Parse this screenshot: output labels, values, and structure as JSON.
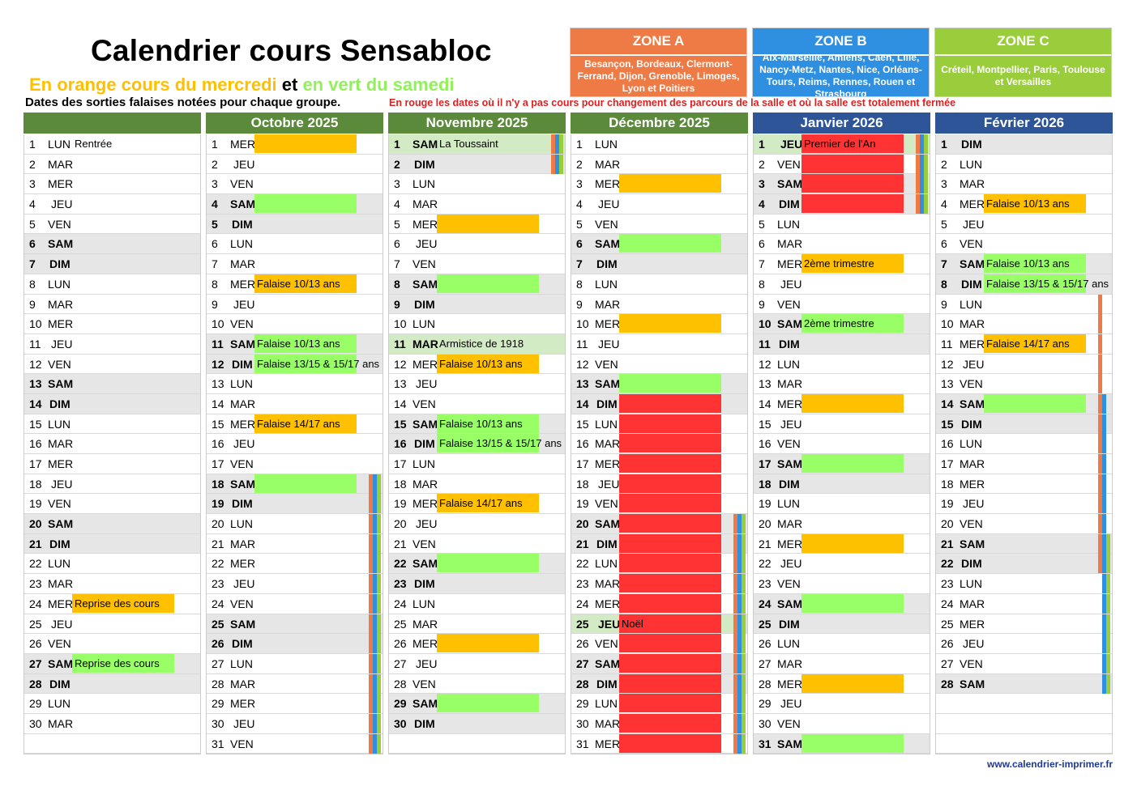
{
  "title": "Calendrier cours Sensabloc",
  "subtitle": {
    "part1": "En orange cours du mercredi",
    "part2": " et ",
    "part3": "en vert du samedi"
  },
  "note_sorties": "Dates des sorties falaises notées pour chaque groupe.",
  "note_rouge": "En rouge les dates où il n'y a pas cours pour changement des parcours de la salle et où la salle est totalement fermée",
  "footer": "www.calendrier-imprimer.fr",
  "colors": {
    "orange": "#FFC000",
    "green": "#99FF66",
    "red": "#FF3333",
    "zoneA": "#EE7A45",
    "zoneB": "#2F8FE0",
    "zoneC": "#9ACD3C",
    "headerGreen": "#5B8A3A",
    "headerBlue": "#2E5597"
  },
  "zones": [
    {
      "name": "ZONE A",
      "cities": "Besançon, Bordeaux, Clermont-Ferrand, Dijon, Grenoble, Limoges, Lyon et Poitiers"
    },
    {
      "name": "ZONE B",
      "cities": "Aix-Marseille, Amiens, Caen, Lille, Nancy-Metz, Nantes, Nice, Orléans-Tours, Reims, Rennes, Rouen et Strasbourg"
    },
    {
      "name": "ZONE C",
      "cities": "Créteil, Montpellier, Paris, Toulouse et Versailles"
    }
  ],
  "months": [
    {
      "name": "",
      "header": "green",
      "days": [
        [
          "1",
          "LUN",
          "Rentrée",
          "txt"
        ],
        [
          "2",
          "MAR"
        ],
        [
          "3",
          "MER"
        ],
        [
          "4",
          "JEU"
        ],
        [
          "5",
          "VEN"
        ],
        [
          "6",
          "SAM",
          "",
          "",
          "we"
        ],
        [
          "7",
          "DIM",
          "",
          "",
          "we"
        ],
        [
          "8",
          "LUN"
        ],
        [
          "9",
          "MAR"
        ],
        [
          "10",
          "MER"
        ],
        [
          "11",
          "JEU"
        ],
        [
          "12",
          "VEN"
        ],
        [
          "13",
          "SAM",
          "",
          "",
          "we"
        ],
        [
          "14",
          "DIM",
          "",
          "",
          "we"
        ],
        [
          "15",
          "LUN"
        ],
        [
          "16",
          "MAR"
        ],
        [
          "17",
          "MER"
        ],
        [
          "18",
          "JEU"
        ],
        [
          "19",
          "VEN"
        ],
        [
          "20",
          "SAM",
          "",
          "",
          "we"
        ],
        [
          "21",
          "DIM",
          "",
          "",
          "we"
        ],
        [
          "22",
          "LUN"
        ],
        [
          "23",
          "MAR"
        ],
        [
          "24",
          "MER",
          "Reprise des cours",
          "orange"
        ],
        [
          "25",
          "JEU"
        ],
        [
          "26",
          "VEN"
        ],
        [
          "27",
          "SAM",
          "Reprise des cours",
          "green",
          "we"
        ],
        [
          "28",
          "DIM",
          "",
          "",
          "we"
        ],
        [
          "29",
          "LUN"
        ],
        [
          "30",
          "MAR"
        ],
        [
          "",
          "",
          ""
        ]
      ]
    },
    {
      "name": "Octobre 2025",
      "header": "green",
      "days": [
        [
          "1",
          "MER",
          "",
          "orange"
        ],
        [
          "2",
          "JEU"
        ],
        [
          "3",
          "VEN"
        ],
        [
          "4",
          "SAM",
          "",
          "green",
          "we"
        ],
        [
          "5",
          "DIM",
          "",
          "",
          "we"
        ],
        [
          "6",
          "LUN"
        ],
        [
          "7",
          "MAR"
        ],
        [
          "8",
          "MER",
          "Falaise 10/13 ans",
          "orange"
        ],
        [
          "9",
          "JEU"
        ],
        [
          "10",
          "VEN"
        ],
        [
          "11",
          "SAM",
          "Falaise 10/13 ans",
          "green",
          "we"
        ],
        [
          "12",
          "DIM",
          "Falaise 13/15 & 15/17 ans",
          "green",
          "we"
        ],
        [
          "13",
          "LUN"
        ],
        [
          "14",
          "MAR"
        ],
        [
          "15",
          "MER",
          "Falaise 14/17 ans",
          "orange"
        ],
        [
          "16",
          "JEU"
        ],
        [
          "17",
          "VEN"
        ],
        [
          "18",
          "SAM",
          "",
          "green",
          "we",
          "ABC"
        ],
        [
          "19",
          "DIM",
          "",
          "",
          "we",
          "ABC"
        ],
        [
          "20",
          "LUN",
          "",
          "",
          "",
          "ABC"
        ],
        [
          "21",
          "MAR",
          "",
          "",
          "",
          "ABC"
        ],
        [
          "22",
          "MER",
          "",
          "",
          "",
          "ABC"
        ],
        [
          "23",
          "JEU",
          "",
          "",
          "",
          "ABC"
        ],
        [
          "24",
          "VEN",
          "",
          "",
          "",
          "ABC"
        ],
        [
          "25",
          "SAM",
          "",
          "",
          "we",
          "ABC"
        ],
        [
          "26",
          "DIM",
          "",
          "",
          "we",
          "ABC"
        ],
        [
          "27",
          "LUN",
          "",
          "",
          "",
          "ABC"
        ],
        [
          "28",
          "MAR",
          "",
          "",
          "",
          "ABC"
        ],
        [
          "29",
          "MER",
          "",
          "",
          "",
          "ABC"
        ],
        [
          "30",
          "JEU",
          "",
          "",
          "",
          "ABC"
        ],
        [
          "31",
          "VEN",
          "",
          "",
          "",
          "ABC"
        ]
      ]
    },
    {
      "name": "Novembre 2025",
      "header": "green",
      "days": [
        [
          "1",
          "SAM",
          "La Toussaint",
          "txt",
          "hol",
          "ABC"
        ],
        [
          "2",
          "DIM",
          "",
          "",
          "we",
          "ABC"
        ],
        [
          "3",
          "LUN"
        ],
        [
          "4",
          "MAR"
        ],
        [
          "5",
          "MER",
          "",
          "orange"
        ],
        [
          "6",
          "JEU"
        ],
        [
          "7",
          "VEN"
        ],
        [
          "8",
          "SAM",
          "",
          "green",
          "we"
        ],
        [
          "9",
          "DIM",
          "",
          "",
          "we"
        ],
        [
          "10",
          "LUN"
        ],
        [
          "11",
          "MAR",
          "Armistice de 1918",
          "txt",
          "hol"
        ],
        [
          "12",
          "MER",
          "Falaise 10/13 ans",
          "orange"
        ],
        [
          "13",
          "JEU"
        ],
        [
          "14",
          "VEN"
        ],
        [
          "15",
          "SAM",
          "Falaise 10/13 ans",
          "green",
          "we"
        ],
        [
          "16",
          "DIM",
          "Falaise 13/15 & 15/17 ans",
          "green",
          "we"
        ],
        [
          "17",
          "LUN"
        ],
        [
          "18",
          "MAR"
        ],
        [
          "19",
          "MER",
          "Falaise 14/17 ans",
          "orange"
        ],
        [
          "20",
          "JEU"
        ],
        [
          "21",
          "VEN"
        ],
        [
          "22",
          "SAM",
          "",
          "green",
          "we"
        ],
        [
          "23",
          "DIM",
          "",
          "",
          "we"
        ],
        [
          "24",
          "LUN"
        ],
        [
          "25",
          "MAR"
        ],
        [
          "26",
          "MER",
          "",
          "orange"
        ],
        [
          "27",
          "JEU"
        ],
        [
          "28",
          "VEN"
        ],
        [
          "29",
          "SAM",
          "",
          "green",
          "we"
        ],
        [
          "30",
          "DIM",
          "",
          "",
          "we"
        ],
        [
          "",
          "",
          ""
        ]
      ]
    },
    {
      "name": "Décembre 2025",
      "header": "green",
      "days": [
        [
          "1",
          "LUN"
        ],
        [
          "2",
          "MAR"
        ],
        [
          "3",
          "MER",
          "",
          "orange"
        ],
        [
          "4",
          "JEU"
        ],
        [
          "5",
          "VEN"
        ],
        [
          "6",
          "SAM",
          "",
          "green",
          "we"
        ],
        [
          "7",
          "DIM",
          "",
          "",
          "we"
        ],
        [
          "8",
          "LUN"
        ],
        [
          "9",
          "MAR"
        ],
        [
          "10",
          "MER",
          "",
          "orange"
        ],
        [
          "11",
          "JEU"
        ],
        [
          "12",
          "VEN"
        ],
        [
          "13",
          "SAM",
          "",
          "green",
          "we"
        ],
        [
          "14",
          "DIM",
          "",
          "red",
          "we"
        ],
        [
          "15",
          "LUN",
          "",
          "red"
        ],
        [
          "16",
          "MAR",
          "",
          "red"
        ],
        [
          "17",
          "MER",
          "",
          "red"
        ],
        [
          "18",
          "JEU",
          "",
          "red"
        ],
        [
          "19",
          "VEN",
          "",
          "red"
        ],
        [
          "20",
          "SAM",
          "",
          "red",
          "we",
          "ABC"
        ],
        [
          "21",
          "DIM",
          "",
          "red",
          "we",
          "ABC"
        ],
        [
          "22",
          "LUN",
          "",
          "red",
          "",
          "ABC"
        ],
        [
          "23",
          "MAR",
          "",
          "red",
          "",
          "ABC"
        ],
        [
          "24",
          "MER",
          "",
          "red",
          "",
          "ABC"
        ],
        [
          "25",
          "JEU",
          "Noël",
          "red",
          "hol",
          "ABC"
        ],
        [
          "26",
          "VEN",
          "",
          "red",
          "",
          "ABC"
        ],
        [
          "27",
          "SAM",
          "",
          "red",
          "we",
          "ABC"
        ],
        [
          "28",
          "DIM",
          "",
          "red",
          "we",
          "ABC"
        ],
        [
          "29",
          "LUN",
          "",
          "red",
          "",
          "ABC"
        ],
        [
          "30",
          "MAR",
          "",
          "red",
          "",
          "ABC"
        ],
        [
          "31",
          "MER",
          "",
          "red",
          "",
          "ABC"
        ]
      ]
    },
    {
      "name": "Janvier 2026",
      "header": "blue",
      "days": [
        [
          "1",
          "JEU",
          "Premier de l'An",
          "red",
          "hol",
          "ABC"
        ],
        [
          "2",
          "VEN",
          "",
          "red",
          "",
          "ABC"
        ],
        [
          "3",
          "SAM",
          "",
          "red",
          "we",
          "ABC"
        ],
        [
          "4",
          "DIM",
          "",
          "red",
          "we",
          "ABC"
        ],
        [
          "5",
          "LUN"
        ],
        [
          "6",
          "MAR"
        ],
        [
          "7",
          "MER",
          "2ème trimestre",
          "orange"
        ],
        [
          "8",
          "JEU"
        ],
        [
          "9",
          "VEN"
        ],
        [
          "10",
          "SAM",
          "2ème trimestre",
          "green",
          "we"
        ],
        [
          "11",
          "DIM",
          "",
          "",
          "we"
        ],
        [
          "12",
          "LUN"
        ],
        [
          "13",
          "MAR"
        ],
        [
          "14",
          "MER",
          "",
          "orange"
        ],
        [
          "15",
          "JEU"
        ],
        [
          "16",
          "VEN"
        ],
        [
          "17",
          "SAM",
          "",
          "green",
          "we"
        ],
        [
          "18",
          "DIM",
          "",
          "",
          "we"
        ],
        [
          "19",
          "LUN"
        ],
        [
          "20",
          "MAR"
        ],
        [
          "21",
          "MER",
          "",
          "orange"
        ],
        [
          "22",
          "JEU"
        ],
        [
          "23",
          "VEN"
        ],
        [
          "24",
          "SAM",
          "",
          "green",
          "we"
        ],
        [
          "25",
          "DIM",
          "",
          "",
          "we"
        ],
        [
          "26",
          "LUN"
        ],
        [
          "27",
          "MAR"
        ],
        [
          "28",
          "MER",
          "",
          "orange"
        ],
        [
          "29",
          "JEU"
        ],
        [
          "30",
          "VEN"
        ],
        [
          "31",
          "SAM",
          "",
          "green",
          "we"
        ]
      ]
    },
    {
      "name": "Février 2026",
      "header": "blue",
      "days": [
        [
          "1",
          "DIM",
          "",
          "",
          "we"
        ],
        [
          "2",
          "LUN"
        ],
        [
          "3",
          "MAR"
        ],
        [
          "4",
          "MER",
          "Falaise 10/13 ans",
          "orange"
        ],
        [
          "5",
          "JEU"
        ],
        [
          "6",
          "VEN"
        ],
        [
          "7",
          "SAM",
          "Falaise 10/13 ans",
          "green",
          "we"
        ],
        [
          "8",
          "DIM",
          "Falaise 13/15 & 15/17 ans",
          "green",
          "we"
        ],
        [
          "9",
          "LUN",
          "",
          "",
          "",
          "A"
        ],
        [
          "10",
          "MAR",
          "",
          "",
          "",
          "A"
        ],
        [
          "11",
          "MER",
          "Falaise 14/17 ans",
          "orange",
          "",
          "A"
        ],
        [
          "12",
          "JEU",
          "",
          "",
          "",
          "A"
        ],
        [
          "13",
          "VEN",
          "",
          "",
          "",
          "A"
        ],
        [
          "14",
          "SAM",
          "",
          "green",
          "we",
          "AB"
        ],
        [
          "15",
          "DIM",
          "",
          "",
          "we",
          "AB"
        ],
        [
          "16",
          "LUN",
          "",
          "",
          "",
          "AB"
        ],
        [
          "17",
          "MAR",
          "",
          "",
          "",
          "AB"
        ],
        [
          "18",
          "MER",
          "",
          "",
          "",
          "AB"
        ],
        [
          "19",
          "JEU",
          "",
          "",
          "",
          "AB"
        ],
        [
          "20",
          "VEN",
          "",
          "",
          "",
          "AB"
        ],
        [
          "21",
          "SAM",
          "",
          "",
          "we",
          "ABC"
        ],
        [
          "22",
          "DIM",
          "",
          "",
          "we",
          "ABC"
        ],
        [
          "23",
          "LUN",
          "",
          "",
          "",
          "BC"
        ],
        [
          "24",
          "MAR",
          "",
          "",
          "",
          "BC"
        ],
        [
          "25",
          "MER",
          "",
          "",
          "",
          "BC"
        ],
        [
          "26",
          "JEU",
          "",
          "",
          "",
          "BC"
        ],
        [
          "27",
          "VEN",
          "",
          "",
          "",
          "BC"
        ],
        [
          "28",
          "SAM",
          "",
          "",
          "we",
          "BC"
        ],
        [
          "",
          "",
          ""
        ],
        [
          "",
          "",
          ""
        ],
        [
          "",
          "",
          ""
        ]
      ]
    }
  ]
}
